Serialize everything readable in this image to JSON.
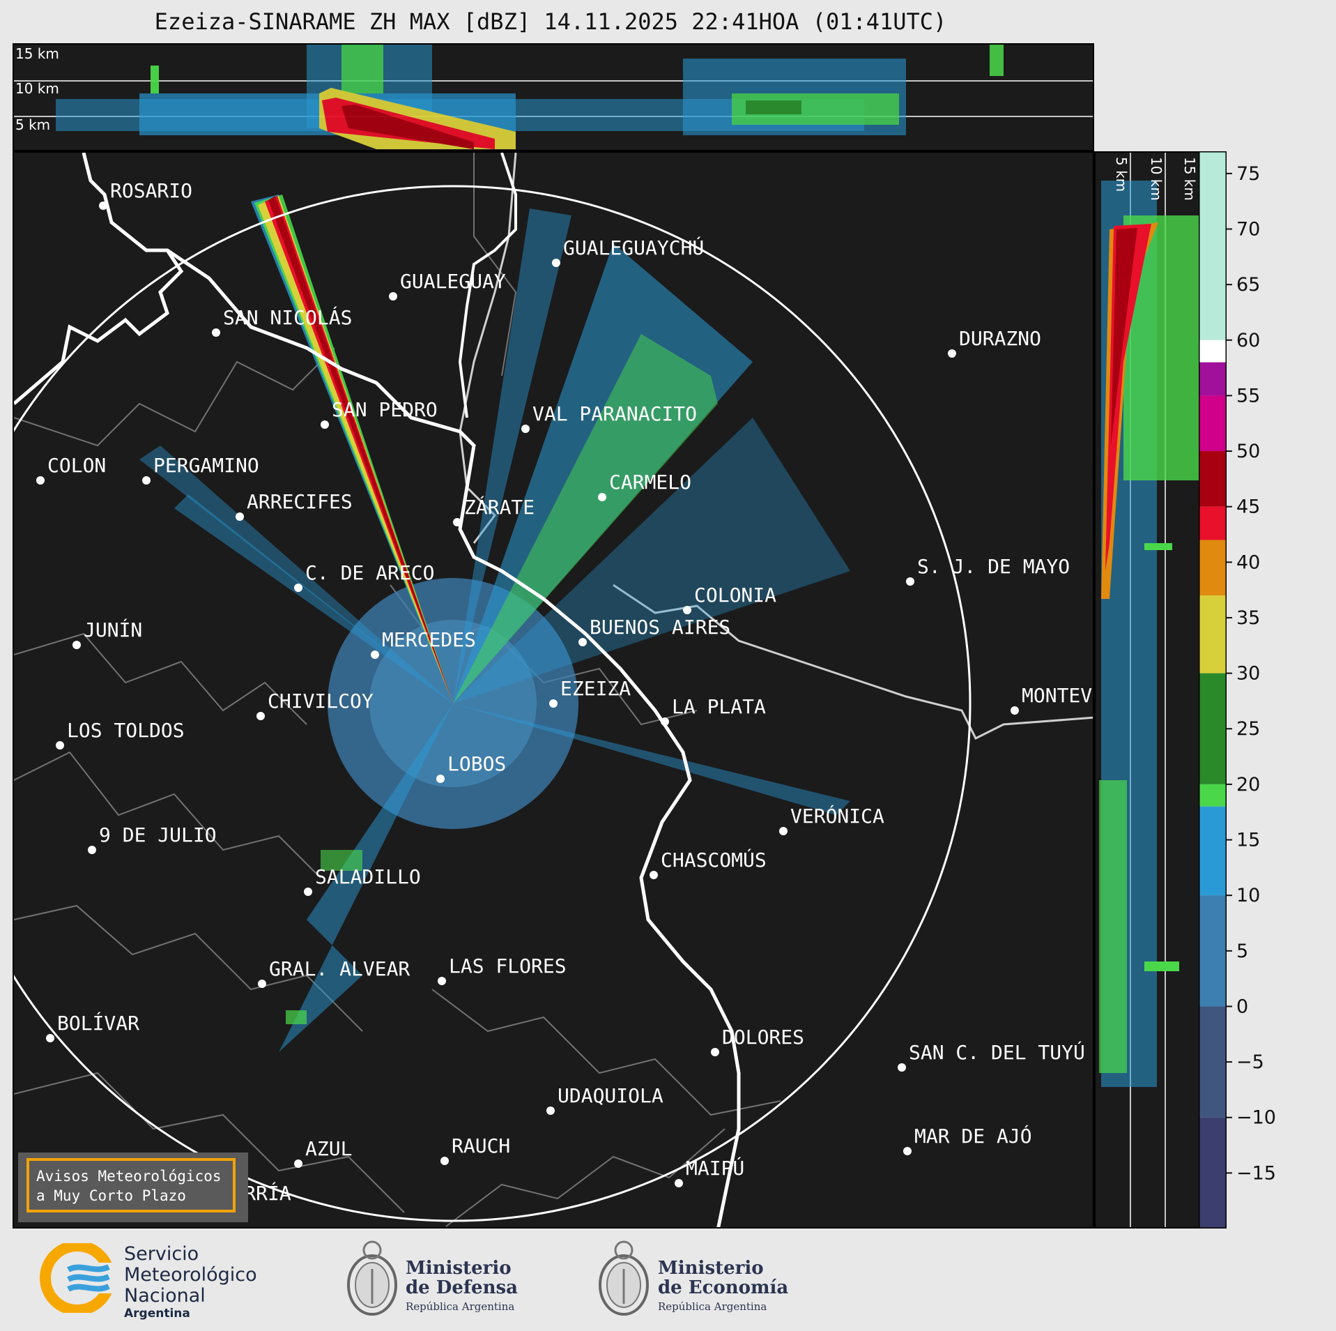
{
  "title": "Ezeiza-SINARAME ZH MAX [dBZ] 14.11.2025 22:41HOA (01:41UTC)",
  "top_profile": {
    "altitude_labels": [
      "15 km",
      "10 km",
      "5 km"
    ]
  },
  "side_profile": {
    "altitude_labels": [
      "5 km",
      "10 km",
      "15 km"
    ]
  },
  "colorbar": {
    "ticks": [
      "75",
      "70",
      "65",
      "60",
      "55",
      "50",
      "45",
      "40",
      "35",
      "30",
      "25",
      "20",
      "15",
      "10",
      "5",
      "0",
      "−5",
      "−10",
      "−15"
    ],
    "range_dbz": [
      -20,
      77
    ],
    "bands": [
      {
        "from": 60,
        "to": 77,
        "color": "#b7ead9"
      },
      {
        "from": 58,
        "to": 60,
        "color": "#ffffff"
      },
      {
        "from": 55,
        "to": 58,
        "color": "#a0109a"
      },
      {
        "from": 50,
        "to": 55,
        "color": "#d0008a"
      },
      {
        "from": 45,
        "to": 50,
        "color": "#a80010"
      },
      {
        "from": 42,
        "to": 45,
        "color": "#e8102a"
      },
      {
        "from": 37,
        "to": 42,
        "color": "#e08a10"
      },
      {
        "from": 30,
        "to": 37,
        "color": "#d8d03a"
      },
      {
        "from": 20,
        "to": 30,
        "color": "#2a8a2a"
      },
      {
        "from": 18,
        "to": 20,
        "color": "#4ad84a"
      },
      {
        "from": 10,
        "to": 18,
        "color": "#2a9ad6"
      },
      {
        "from": 0,
        "to": 10,
        "color": "#3d7fb0"
      },
      {
        "from": -10,
        "to": 0,
        "color": "#40567f"
      },
      {
        "from": -20,
        "to": -10,
        "color": "#3b3e6e"
      }
    ]
  },
  "cities": [
    {
      "name": "ROSARIO"
    },
    {
      "name": "GUALEGUAYCHÚ"
    },
    {
      "name": "GUALEGUAY"
    },
    {
      "name": "SAN NICOLÁS"
    },
    {
      "name": "DURAZNO"
    },
    {
      "name": "SAN PEDRO"
    },
    {
      "name": "VAL PARANACITO"
    },
    {
      "name": "COLON"
    },
    {
      "name": "PERGAMINO"
    },
    {
      "name": "CARMELO"
    },
    {
      "name": "ARRECIFES"
    },
    {
      "name": "ZÁRATE"
    },
    {
      "name": "S. J. DE MAYO"
    },
    {
      "name": "C. DE ARECO"
    },
    {
      "name": "COLONIA"
    },
    {
      "name": "JUNÍN"
    },
    {
      "name": "MERCEDES"
    },
    {
      "name": "BUENOS AIRES"
    },
    {
      "name": "EZEIZA"
    },
    {
      "name": "CHIVILCOY"
    },
    {
      "name": "MONTEV"
    },
    {
      "name": "LA PLATA"
    },
    {
      "name": "LOS TOLDOS"
    },
    {
      "name": "LOBOS"
    },
    {
      "name": "VERÓNICA"
    },
    {
      "name": "9 DE JULIO"
    },
    {
      "name": "CHASCOMÚS"
    },
    {
      "name": "SALADILLO"
    },
    {
      "name": "GRAL. ALVEAR"
    },
    {
      "name": "LAS FLORES"
    },
    {
      "name": "BOLÍVAR"
    },
    {
      "name": "DOLORES"
    },
    {
      "name": "SAN C. DEL TUYÚ"
    },
    {
      "name": "UDAQUIOLA"
    },
    {
      "name": "MAR DE AJÓ"
    },
    {
      "name": "AZUL"
    },
    {
      "name": "RAUCH"
    },
    {
      "name": "MAIPÚ"
    },
    {
      "name": "OLAVARRÍA"
    }
  ],
  "alert_box": {
    "line1": "Avisos Meteorológicos",
    "line2": "a Muy Corto Plazo"
  },
  "footer": {
    "smn": {
      "line1": "Servicio",
      "line2": "Meteorológico",
      "line3": "Nacional",
      "line4": "Argentina"
    },
    "defensa": {
      "line1": "Ministerio",
      "line2": "de Defensa",
      "line3": "República Argentina"
    },
    "economia": {
      "line1": "Ministerio",
      "line2": "de Economía",
      "line3": "República Argentina"
    }
  }
}
